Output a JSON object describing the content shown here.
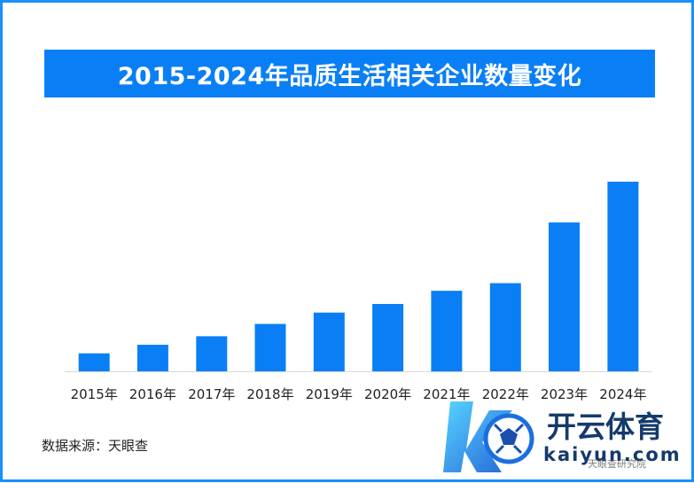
{
  "title": "2015-2024年品质生活相关企业数量变化",
  "source": "数据来源：天眼查",
  "colors": {
    "bar": "#0a7ff5",
    "title_bg": "#0a7ff5",
    "frame": "#1a8ffe",
    "axis": "#d9d9d9"
  },
  "watermark": {
    "brand": "开云体育",
    "domain": "kaiyun.com",
    "sub": "天眼查研究院"
  },
  "chart_data": {
    "type": "bar",
    "title": "2015-2024年品质生活相关企业数量变化",
    "categories": [
      "2015年",
      "2016年",
      "2017年",
      "2018年",
      "2019年",
      "2020年",
      "2021年",
      "2022年",
      "2023年",
      "2024年"
    ],
    "values": [
      9.5,
      14,
      18.5,
      25,
      31,
      35.5,
      42.5,
      46.5,
      78.5,
      100
    ],
    "xlabel": "",
    "ylabel": "",
    "ylim": [
      0,
      100
    ],
    "grid": false,
    "legend": "none"
  }
}
